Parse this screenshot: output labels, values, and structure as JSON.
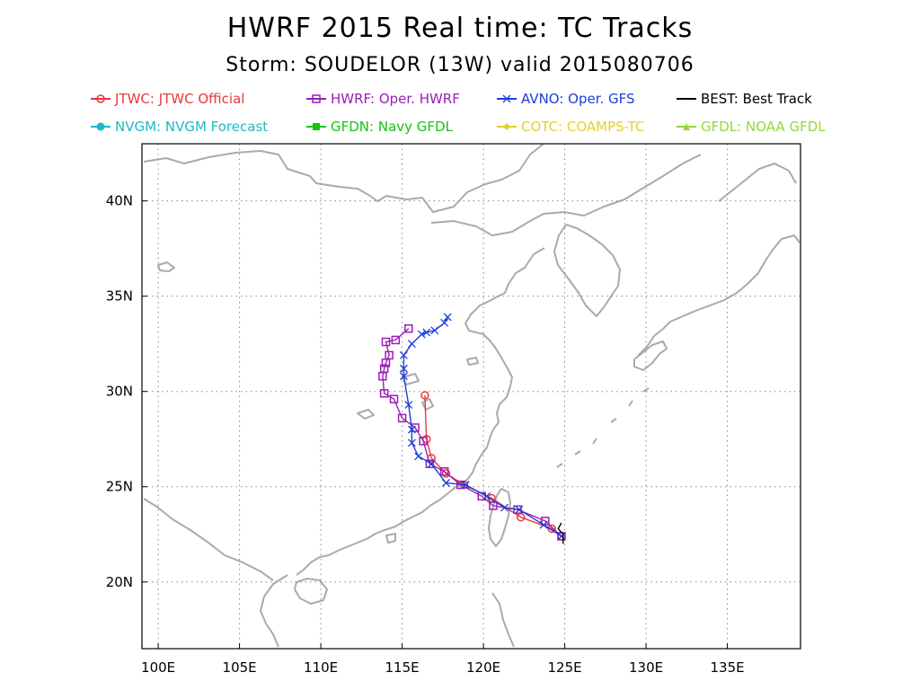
{
  "chart_data": {
    "type": "line",
    "title": "HWRF 2015 Real time: TC Tracks",
    "subtitle": "Storm: SOUDELOR (13W) valid 2015080706",
    "xlim": [
      99,
      139.5
    ],
    "ylim": [
      16.5,
      43
    ],
    "x_ticks": [
      100,
      105,
      110,
      115,
      120,
      125,
      130,
      135
    ],
    "x_tick_labels": [
      "100E",
      "105E",
      "110E",
      "115E",
      "120E",
      "125E",
      "130E",
      "135E"
    ],
    "y_ticks": [
      20,
      25,
      30,
      35,
      40
    ],
    "y_tick_labels": [
      "20N",
      "25N",
      "30N",
      "35N",
      "40N"
    ],
    "grid": true,
    "legend": [
      {
        "key": "jtwc",
        "label": "JTWC: JTWC Official",
        "color": "#e8383a",
        "marker": "circle-open"
      },
      {
        "key": "hwrf",
        "label": "HWRF: Oper. HWRF",
        "color": "#9b1fb6",
        "marker": "square-open"
      },
      {
        "key": "avno",
        "label": "AVNO: Oper. GFS",
        "color": "#1d3fd8",
        "marker": "x"
      },
      {
        "key": "best",
        "label": "BEST: Best Track",
        "color": "#000000",
        "marker": "none"
      },
      {
        "key": "nvgm",
        "label": "NVGM: NVGM Forecast",
        "color": "#1fb9c4",
        "marker": "circle-filled"
      },
      {
        "key": "gfdn",
        "label": "GFDN: Navy GFDL",
        "color": "#16c416",
        "marker": "square-filled"
      },
      {
        "key": "cotc",
        "label": "COTC: COAMPS-TC",
        "color": "#e5cf2c",
        "marker": "diamond"
      },
      {
        "key": "gfdl",
        "label": "GFDL: NOAA GFDL",
        "color": "#95d63a",
        "marker": "triangle"
      }
    ],
    "series": [
      {
        "name": "JTWC: JTWC Official",
        "color": "#e8383a",
        "marker": "circle-open",
        "points": [
          [
            124.8,
            22.4
          ],
          [
            124.2,
            22.8
          ],
          [
            122.3,
            23.4
          ],
          [
            120.5,
            24.4
          ],
          [
            118.8,
            25.1
          ],
          [
            117.7,
            25.7
          ],
          [
            116.8,
            26.5
          ],
          [
            116.5,
            27.5
          ],
          [
            116.4,
            29.8
          ]
        ]
      },
      {
        "name": "HWRF: Oper. HWRF",
        "color": "#9b1fb6",
        "marker": "square-open",
        "points": [
          [
            124.8,
            22.4
          ],
          [
            123.8,
            23.2
          ],
          [
            122.1,
            23.8
          ],
          [
            120.6,
            24.0
          ],
          [
            119.9,
            24.5
          ],
          [
            118.6,
            25.1
          ],
          [
            117.6,
            25.8
          ],
          [
            116.7,
            26.2
          ],
          [
            116.3,
            27.4
          ],
          [
            115.8,
            28.1
          ],
          [
            115.0,
            28.6
          ],
          [
            114.5,
            29.6
          ],
          [
            113.9,
            29.9
          ],
          [
            113.8,
            30.8
          ],
          [
            113.9,
            31.2
          ],
          [
            114.0,
            31.5
          ],
          [
            114.2,
            31.9
          ],
          [
            114.0,
            32.6
          ],
          [
            114.6,
            32.7
          ],
          [
            115.4,
            33.3
          ]
        ]
      },
      {
        "name": "AVNO: Oper. GFS",
        "color": "#1d3fd8",
        "marker": "x",
        "points": [
          [
            124.8,
            22.4
          ],
          [
            123.7,
            23.0
          ],
          [
            122.2,
            23.8
          ],
          [
            121.3,
            23.9
          ],
          [
            120.2,
            24.5
          ],
          [
            118.9,
            25.1
          ],
          [
            117.7,
            25.2
          ],
          [
            116.8,
            26.2
          ],
          [
            116.0,
            26.6
          ],
          [
            115.6,
            27.3
          ],
          [
            115.6,
            28.0
          ],
          [
            115.4,
            29.3
          ],
          [
            115.1,
            30.8
          ],
          [
            115.1,
            31.2
          ],
          [
            115.1,
            31.9
          ],
          [
            115.6,
            32.5
          ],
          [
            116.2,
            33.0
          ],
          [
            116.5,
            33.1
          ],
          [
            117.0,
            33.2
          ],
          [
            117.6,
            33.6
          ],
          [
            117.8,
            33.9
          ]
        ]
      },
      {
        "name": "BEST: Best Track",
        "color": "#000000",
        "marker": "none",
        "points": [
          [
            124.8,
            23.1
          ],
          [
            124.6,
            22.8
          ],
          [
            124.9,
            22.5
          ],
          [
            124.9,
            22.0
          ]
        ]
      }
    ]
  }
}
